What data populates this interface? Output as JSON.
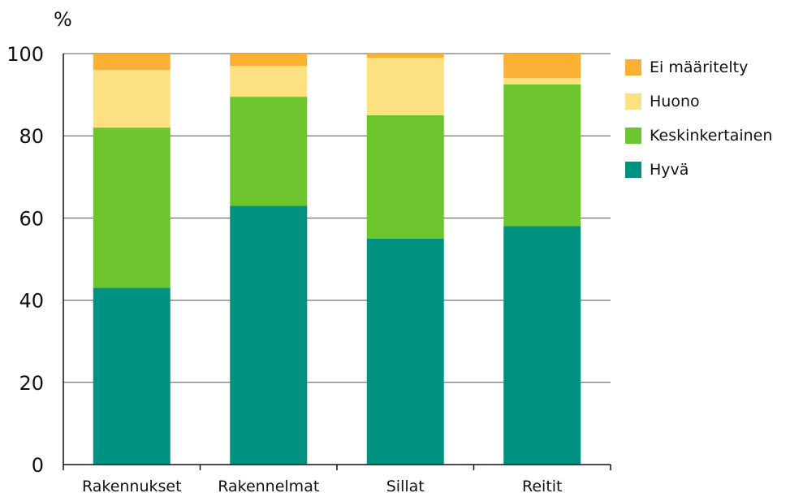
{
  "chart_data": {
    "type": "bar",
    "stacked": true,
    "title": "",
    "xlabel": "",
    "ylabel": "%",
    "ylim": [
      0,
      100
    ],
    "yticks": [
      0,
      20,
      40,
      60,
      80,
      100
    ],
    "categories": [
      "Rakennukset",
      "Rakennelmat",
      "Sillat",
      "Reitit"
    ],
    "series": [
      {
        "name": "Hyvä",
        "color": "#009180",
        "values": [
          43,
          63,
          55,
          58
        ]
      },
      {
        "name": "Keskinkertainen",
        "color": "#6dc52d",
        "values": [
          39,
          26.5,
          30,
          34.5
        ]
      },
      {
        "name": "Huono",
        "color": "#fde180",
        "values": [
          14,
          7.5,
          14,
          1.5
        ]
      },
      {
        "name": "Ei määritelty",
        "color": "#fbb034",
        "values": [
          4,
          3,
          1,
          6
        ]
      }
    ],
    "legend_order": [
      "Ei määritelty",
      "Huono",
      "Keskinkertainen",
      "Hyvä"
    ],
    "legend_position": "right",
    "grid": true
  }
}
